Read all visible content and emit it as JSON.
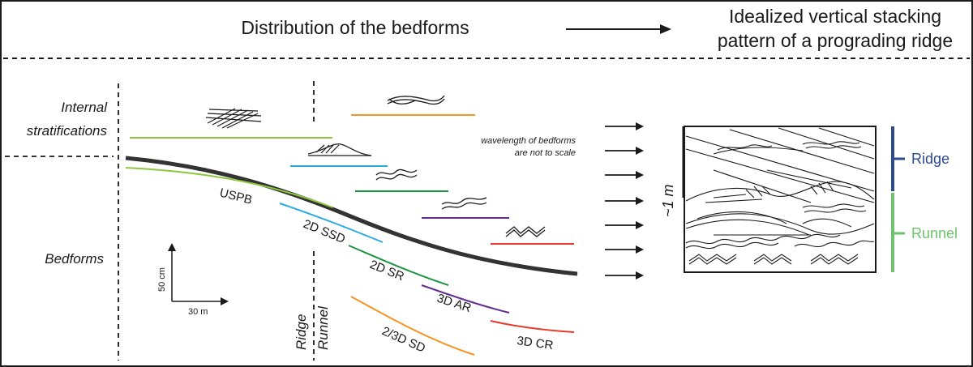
{
  "header": {
    "left_title": "Distribution of the bedforms",
    "right_title_line1": "Idealized vertical stacking",
    "right_title_line2": "pattern of a prograding ridge"
  },
  "left_labels": {
    "internal_line1": "Internal",
    "internal_line2": "stratifications",
    "bedforms": "Bedforms"
  },
  "scale_bar": {
    "vertical": "50 cm",
    "horizontal": "30 m"
  },
  "zones": {
    "ridge": "Ridge",
    "runnel": "Runnel"
  },
  "note": {
    "line1": "wavelength of bedforms",
    "line2": "are not to scale"
  },
  "bedforms": [
    {
      "code": "USPB",
      "color": "#8cc63f"
    },
    {
      "code": "2D SSD",
      "color": "#29abe2"
    },
    {
      "code": "2D SR",
      "color": "#1a9641"
    },
    {
      "code": "3D AR",
      "color": "#662d91"
    },
    {
      "code": "3D CR",
      "color": "#e8392a"
    },
    {
      "code": "2/3D SD",
      "color": "#f7931e"
    }
  ],
  "stacking": {
    "thickness": "~1 m",
    "ridge_label": "Ridge",
    "ridge_color": "#2e4a8f",
    "runnel_label": "Runnel",
    "runnel_color": "#6cc36c"
  }
}
